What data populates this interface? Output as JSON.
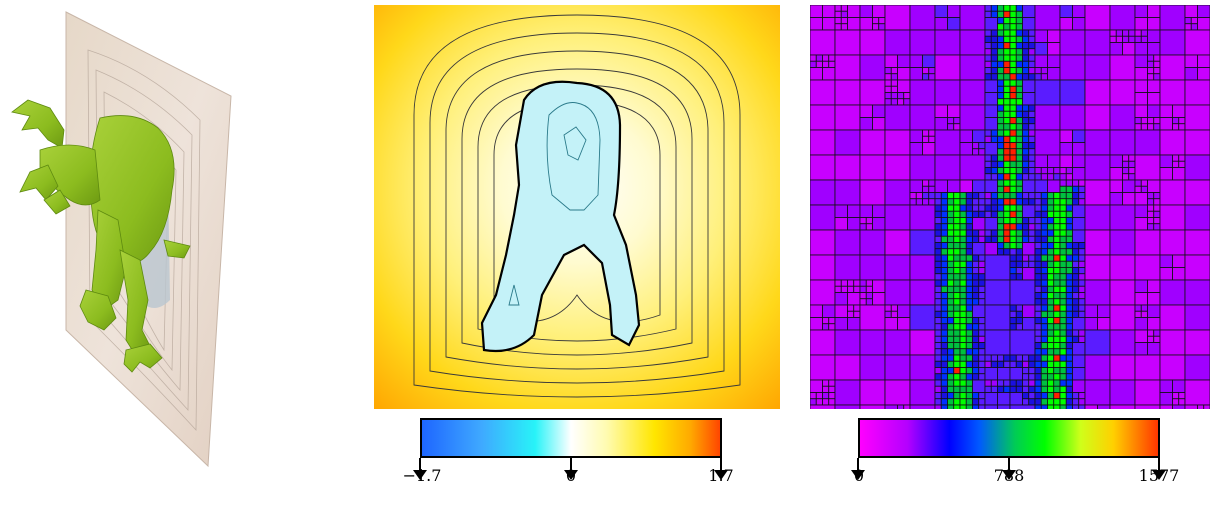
{
  "colorbars": [
    {
      "name": "signed-distance-colorbar",
      "gradient_colors": [
        "#1e66ff",
        "#28f3f8",
        "#ffffff",
        "#ffe600",
        "#ff4600"
      ],
      "ticks": [
        "−1.7",
        "0",
        "1.7"
      ]
    },
    {
      "name": "octree-cost-colorbar",
      "gradient_colors": [
        "#ff00ff",
        "#0000ff",
        "#00ff00",
        "#ffd000",
        "#ff3600"
      ],
      "ticks": [
        "0",
        "788",
        "1577"
      ]
    }
  ],
  "colors": {
    "mesh": "#8fbf1e",
    "plane": "#e9d6cc",
    "contour": "#333333",
    "zero_contour": "#000000"
  }
}
